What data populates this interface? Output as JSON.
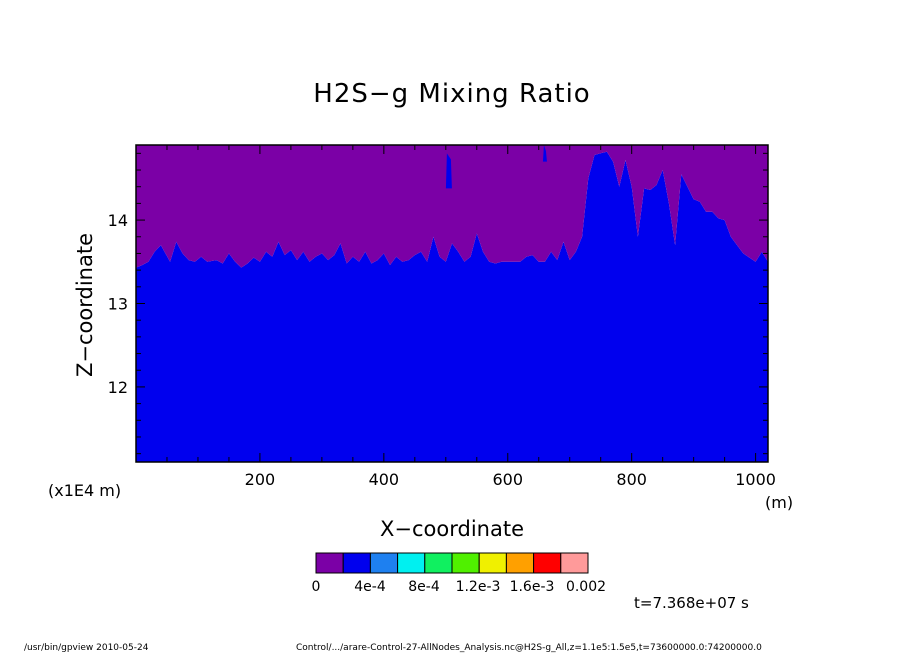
{
  "chart_data": {
    "type": "heatmap",
    "title": "H2S−g Mixing Ratio",
    "xlabel": "X−coordinate",
    "ylabel": "Z−coordinate",
    "x_unit": "(m)",
    "y_unit": "(x1E4 m)",
    "xlim": [
      0,
      1020
    ],
    "ylim": [
      11.1,
      14.9
    ],
    "x_ticks": [
      200,
      400,
      600,
      800,
      1000
    ],
    "y_ticks": [
      12,
      13,
      14
    ],
    "colorbar": {
      "tick_labels": [
        "0",
        "4e-4",
        "8e-4",
        "1.2e-3",
        "1.6e-3",
        "0.002"
      ],
      "colors": [
        "#7b00a6",
        "#0000ee",
        "#1e80f0",
        "#00f0f0",
        "#10f060",
        "#50f000",
        "#f0f000",
        "#ffa000",
        "#ff0000",
        "#ff9a9a"
      ]
    },
    "regions": [
      {
        "level": "0 – 2e-4",
        "color": "#7b00a6",
        "where": "upper layer"
      },
      {
        "level": "2e-4 – 4e-4",
        "color": "#0000ee",
        "where": "lower layer"
      }
    ],
    "boundary": {
      "x": [
        0,
        10,
        20,
        30,
        40,
        55,
        65,
        75,
        85,
        95,
        105,
        115,
        130,
        140,
        150,
        160,
        170,
        180,
        190,
        200,
        210,
        220,
        230,
        240,
        250,
        260,
        270,
        280,
        290,
        300,
        310,
        320,
        330,
        340,
        350,
        360,
        370,
        380,
        390,
        400,
        410,
        420,
        430,
        440,
        450,
        460,
        470,
        480,
        490,
        500,
        510,
        520,
        530,
        540,
        550,
        560,
        570,
        580,
        590,
        600,
        610,
        620,
        630,
        640,
        650,
        660,
        670,
        680,
        690,
        700,
        710,
        720,
        730,
        740,
        750,
        760,
        770,
        780,
        790,
        800,
        810,
        820,
        830,
        840,
        850,
        860,
        870,
        880,
        890,
        900,
        910,
        920,
        930,
        940,
        950,
        960,
        970,
        980,
        990,
        1000,
        1010,
        1020
      ],
      "z": [
        13.43,
        13.46,
        13.5,
        13.62,
        13.7,
        13.5,
        13.74,
        13.6,
        13.52,
        13.5,
        13.56,
        13.5,
        13.52,
        13.48,
        13.6,
        13.5,
        13.43,
        13.48,
        13.55,
        13.5,
        13.62,
        13.56,
        13.74,
        13.58,
        13.64,
        13.52,
        13.62,
        13.5,
        13.56,
        13.6,
        13.52,
        13.58,
        13.72,
        13.48,
        13.56,
        13.5,
        13.62,
        13.48,
        13.52,
        13.6,
        13.46,
        13.56,
        13.5,
        13.52,
        13.58,
        13.62,
        13.5,
        13.8,
        13.56,
        13.5,
        13.72,
        13.62,
        13.5,
        13.56,
        13.84,
        13.62,
        13.5,
        13.48,
        13.5,
        13.5,
        13.5,
        13.5,
        13.56,
        13.58,
        13.5,
        13.5,
        13.62,
        13.52,
        13.74,
        13.52,
        13.62,
        13.8,
        14.5,
        14.78,
        14.8,
        14.82,
        14.7,
        14.4,
        14.72,
        14.4,
        13.8,
        14.38,
        14.36,
        14.42,
        14.6,
        14.2,
        13.7,
        14.55,
        14.4,
        14.25,
        14.22,
        14.1,
        14.1,
        14.02,
        14.0,
        13.8,
        13.7,
        13.6,
        13.55,
        13.5,
        13.62,
        13.5
      ]
    },
    "spikes": [
      {
        "x": 505,
        "z_from": 14.38,
        "z_to": 14.8,
        "width": 6
      },
      {
        "x": 660,
        "z_from": 14.7,
        "z_to": 14.9,
        "width": 4
      }
    ],
    "annotations": {
      "time": "t=7.368e+07 s",
      "program": "/usr/bin/gpview   2010-05-24",
      "source": "Control/.../arare-Control-27-AllNodes_Analysis.nc@H2S-g_All,z=1.1e5:1.5e5,t=73600000.0:74200000.0"
    }
  }
}
